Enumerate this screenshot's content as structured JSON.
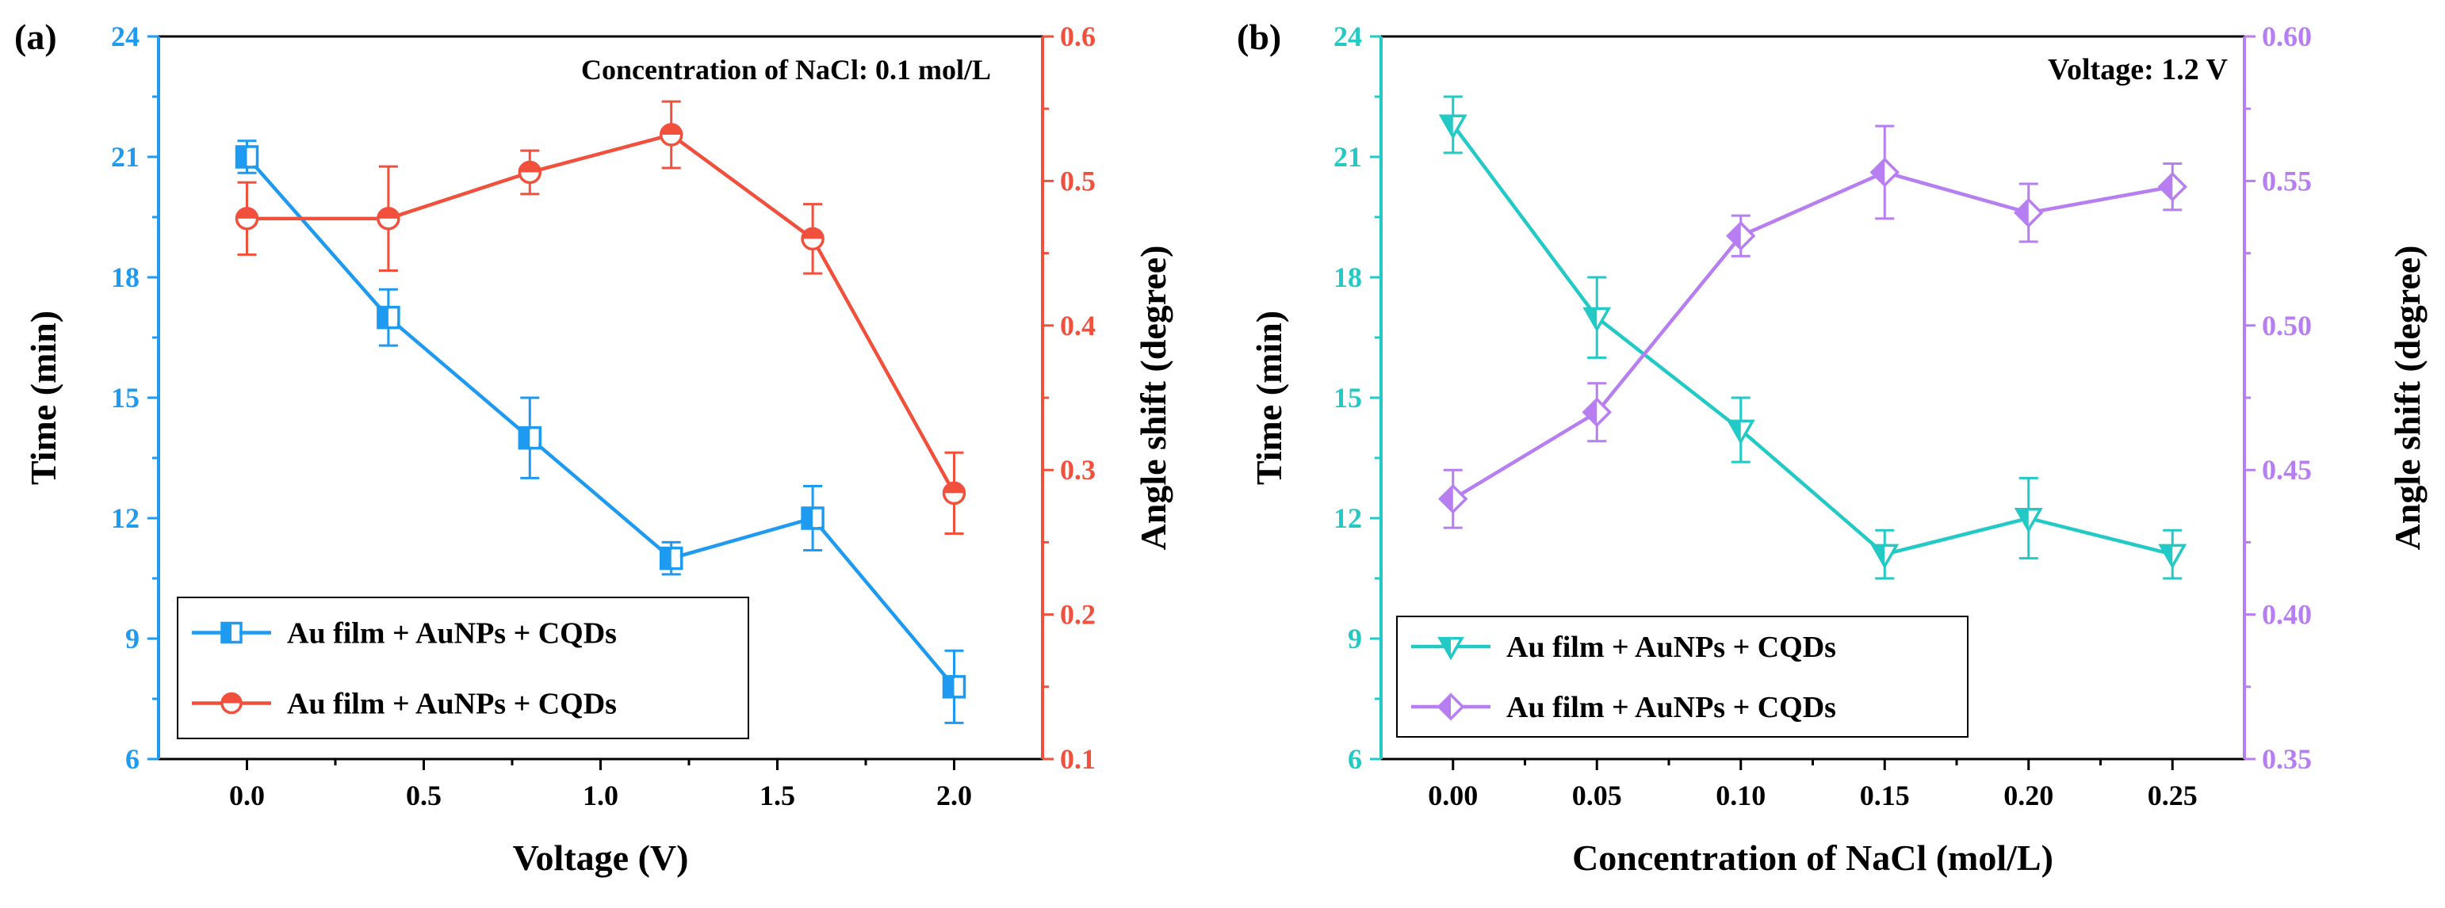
{
  "colors": {
    "blue": "#1E9BF0",
    "red": "#F0503C",
    "cyan": "#22C9C5",
    "purple": "#B67EF0",
    "frame": "#000000"
  },
  "chart_data": [
    {
      "panel_label": "(a)",
      "type": "line",
      "annotation": "Concentration of NaCl: 0.1 mol/L",
      "xlabel": "Voltage (V)",
      "xlim": [
        -0.25,
        2.25
      ],
      "x_ticks": [
        0.0,
        0.5,
        1.0,
        1.5,
        2.0
      ],
      "x_tick_labels": [
        "0.0",
        "0.5",
        "1.0",
        "1.5",
        "2.0"
      ],
      "ylabel_left": "Time (min)",
      "ylim_left": [
        6,
        24
      ],
      "y_left_ticks": [
        6,
        9,
        12,
        15,
        18,
        21,
        24
      ],
      "y_left_tick_labels": [
        "6",
        "9",
        "12",
        "15",
        "18",
        "21",
        "24"
      ],
      "ylabel_right": "Angle shift (degree)",
      "ylim_right": [
        0.1,
        0.6
      ],
      "y_right_ticks": [
        0.1,
        0.2,
        0.3,
        0.4,
        0.5,
        0.6
      ],
      "y_right_tick_labels": [
        "0.1",
        "0.2",
        "0.3",
        "0.4",
        "0.5",
        "0.6"
      ],
      "legend_position": "bottom-left",
      "series": [
        {
          "name": "Au film + AuNPs + CQDs",
          "axis": "left",
          "marker": "half-square",
          "color": "#1E9BF0",
          "x": [
            0.0,
            0.4,
            0.8,
            1.2,
            1.6,
            2.0
          ],
          "y": [
            21.0,
            17.0,
            14.0,
            11.0,
            12.0,
            7.8
          ],
          "err": [
            0.4,
            0.7,
            1.0,
            0.4,
            0.8,
            0.9
          ]
        },
        {
          "name": "Au film + AuNPs + CQDs",
          "axis": "right",
          "marker": "half-circle",
          "color": "#F0503C",
          "x": [
            0.0,
            0.4,
            0.8,
            1.2,
            1.6,
            2.0
          ],
          "y": [
            0.474,
            0.474,
            0.506,
            0.532,
            0.46,
            0.284
          ],
          "err": [
            0.025,
            0.036,
            0.015,
            0.023,
            0.024,
            0.028
          ]
        }
      ]
    },
    {
      "panel_label": "(b)",
      "type": "line",
      "annotation": "Voltage: 1.2 V",
      "xlabel": "Concentration of NaCl (mol/L)",
      "xlim": [
        -0.025,
        0.275
      ],
      "x_ticks": [
        0.0,
        0.05,
        0.1,
        0.15,
        0.2,
        0.25
      ],
      "x_tick_labels": [
        "0.00",
        "0.05",
        "0.10",
        "0.15",
        "0.20",
        "0.25"
      ],
      "ylabel_left": "Time (min)",
      "ylim_left": [
        6,
        24
      ],
      "y_left_ticks": [
        6,
        9,
        12,
        15,
        18,
        21,
        24
      ],
      "y_left_tick_labels": [
        "6",
        "9",
        "12",
        "15",
        "18",
        "21",
        "24"
      ],
      "ylabel_right": "Angle shift (degree)",
      "ylim_right": [
        0.35,
        0.6
      ],
      "y_right_ticks": [
        0.35,
        0.4,
        0.45,
        0.5,
        0.55,
        0.6
      ],
      "y_right_tick_labels": [
        "0.35",
        "0.40",
        "0.45",
        "0.50",
        "0.55",
        "0.60"
      ],
      "legend_position": "bottom-left",
      "series": [
        {
          "name": "Au film + AuNPs + CQDs",
          "axis": "left",
          "marker": "half-triangle-down",
          "color": "#22C9C5",
          "x": [
            0.0,
            0.05,
            0.1,
            0.15,
            0.2,
            0.25
          ],
          "y": [
            21.8,
            17.0,
            14.2,
            11.1,
            12.0,
            11.1
          ],
          "err": [
            0.7,
            1.0,
            0.8,
            0.6,
            1.0,
            0.6
          ]
        },
        {
          "name": "Au film + AuNPs + CQDs",
          "axis": "right",
          "marker": "half-diamond",
          "color": "#B67EF0",
          "x": [
            0.0,
            0.05,
            0.1,
            0.15,
            0.2,
            0.25
          ],
          "y": [
            0.44,
            0.47,
            0.531,
            0.553,
            0.539,
            0.548
          ],
          "err": [
            0.01,
            0.01,
            0.007,
            0.016,
            0.01,
            0.008
          ]
        }
      ]
    }
  ]
}
